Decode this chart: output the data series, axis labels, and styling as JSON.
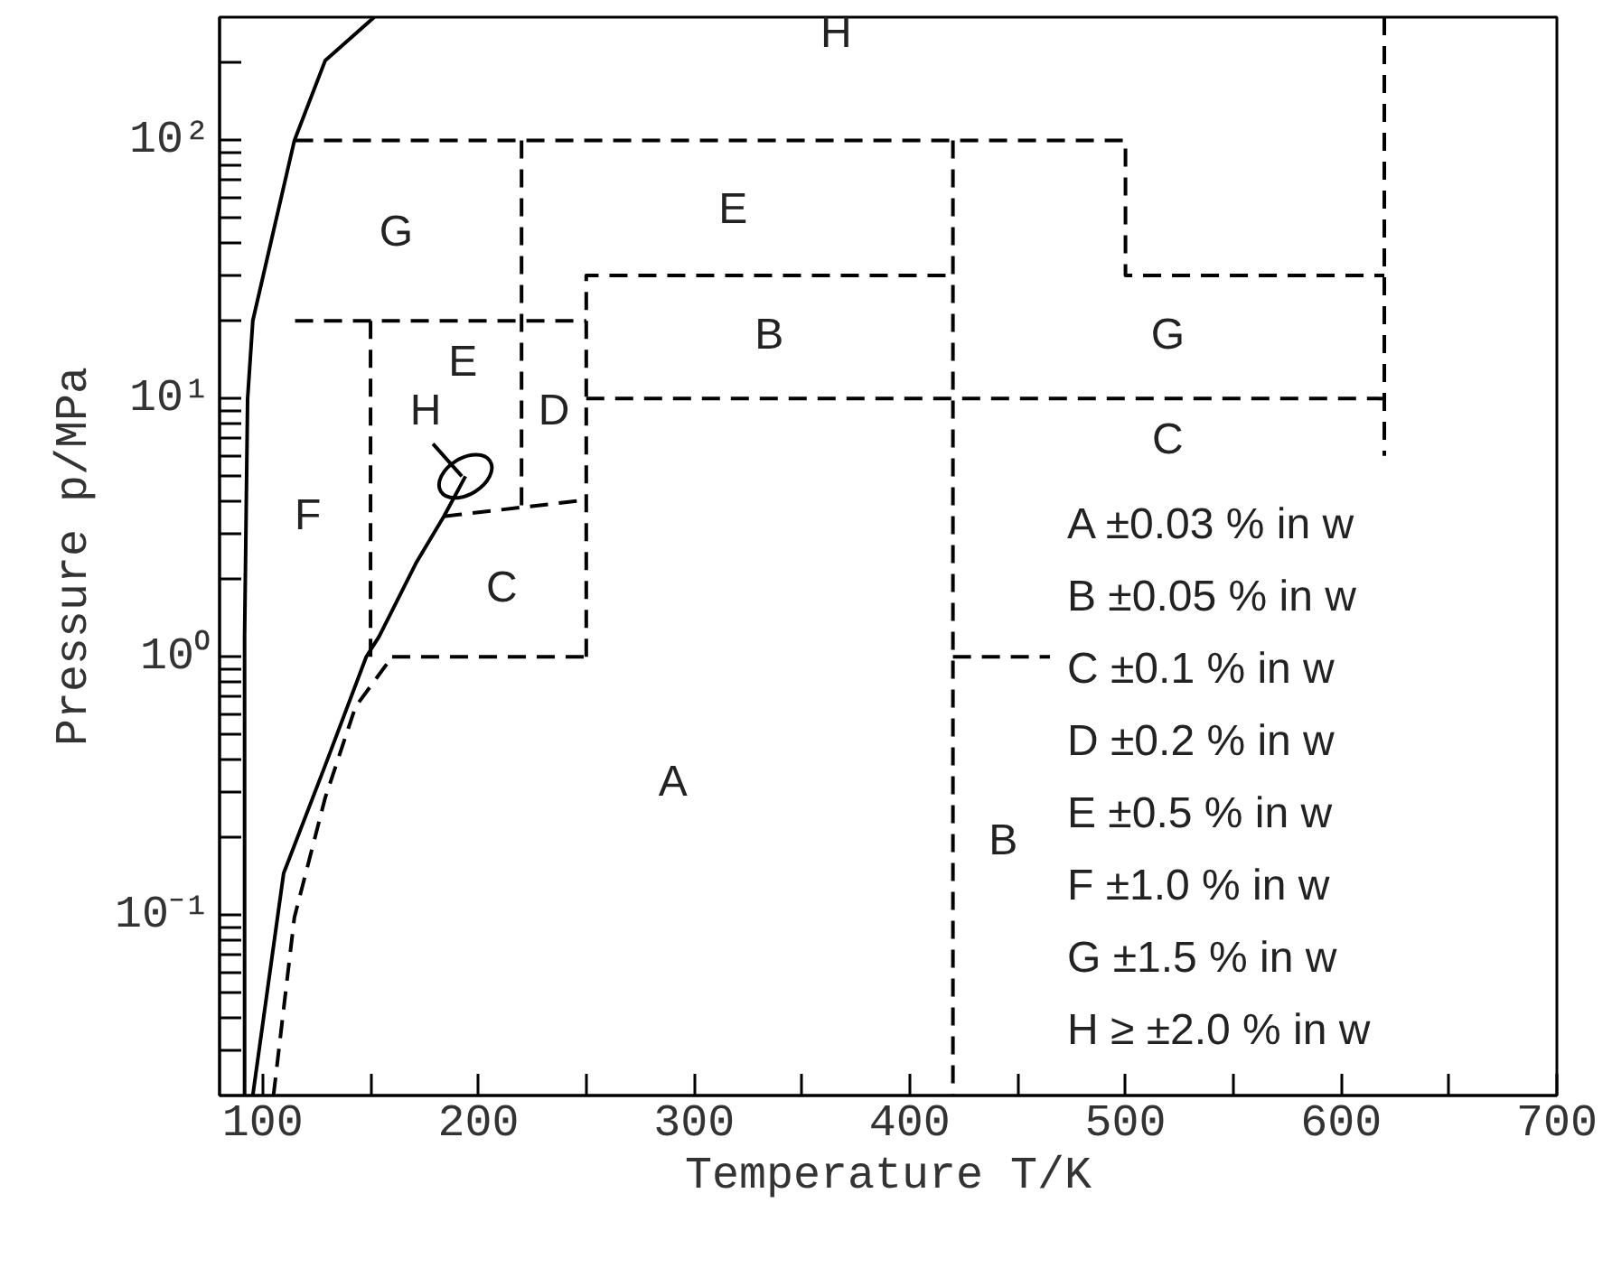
{
  "chart_data": {
    "type": "line",
    "xlabel": "Temperature T/K",
    "ylabel": "Pressure p/MPa",
    "log": "y",
    "grid": false,
    "marker": "none",
    "xlim": [
      80,
      700
    ],
    "xticks": [
      100,
      {
        "value": 150,
        "label": null
      },
      200,
      {
        "value": 250,
        "label": null
      },
      300,
      {
        "value": 350,
        "label": null
      },
      400,
      {
        "value": 450,
        "label": null
      },
      500,
      {
        "value": 550,
        "label": null
      },
      600,
      {
        "value": 650,
        "label": null
      },
      700
    ],
    "ylim": [
      0.02,
      300
    ],
    "yticks": [
      {
        "value": 0.03,
        "label": null
      },
      {
        "value": 0.04,
        "label": null
      },
      {
        "value": 0.05,
        "label": null
      },
      {
        "value": 0.06,
        "label": null
      },
      {
        "value": 0.07,
        "label": null
      },
      {
        "value": 0.08,
        "label": null
      },
      {
        "value": 0.09,
        "label": null
      },
      {
        "value": 0.1,
        "label": "10⁻¹"
      },
      {
        "value": 0.2,
        "label": null
      },
      {
        "value": 0.3,
        "label": null
      },
      {
        "value": 0.4,
        "label": null
      },
      {
        "value": 0.5,
        "label": null
      },
      {
        "value": 0.6,
        "label": null
      },
      {
        "value": 0.7,
        "label": null
      },
      {
        "value": 0.8,
        "label": null
      },
      {
        "value": 0.9,
        "label": null
      },
      {
        "value": 1,
        "label": "10⁰"
      },
      {
        "value": 2,
        "label": null
      },
      {
        "value": 3,
        "label": null
      },
      {
        "value": 4,
        "label": null
      },
      {
        "value": 5,
        "label": null
      },
      {
        "value": 6,
        "label": null
      },
      {
        "value": 7,
        "label": null
      },
      {
        "value": 8,
        "label": null
      },
      {
        "value": 9,
        "label": null
      },
      {
        "value": 10,
        "label": "10¹"
      },
      {
        "value": 20,
        "label": null
      },
      {
        "value": 30,
        "label": null
      },
      {
        "value": 40,
        "label": null
      },
      {
        "value": 50,
        "label": null
      },
      {
        "value": 60,
        "label": null
      },
      {
        "value": 70,
        "label": null
      },
      {
        "value": 80,
        "label": null
      },
      {
        "value": 90,
        "label": null
      },
      {
        "value": 100,
        "label": "10²"
      },
      {
        "value": 200,
        "label": null
      }
    ],
    "series": [
      {
        "color": "#000000",
        "line_style": "dashed",
        "x": [
          115,
          500,
          500,
          620
        ],
        "values": [
          100,
          100,
          30,
          30
        ]
      },
      {
        "color": "#000000",
        "line_style": "dashed",
        "x": [
          115,
          250
        ],
        "values": [
          20,
          20
        ]
      },
      {
        "color": "#000000",
        "line_style": "dashed",
        "x": [
          250,
          250,
          420
        ],
        "values": [
          1,
          30,
          30
        ]
      },
      {
        "color": "#000000",
        "line_style": "dashed",
        "x": [
          220,
          220
        ],
        "values": [
          100,
          3.8
        ]
      },
      {
        "color": "#000000",
        "line_style": "dashed",
        "x": [
          150,
          150
        ],
        "values": [
          20,
          1
        ]
      },
      {
        "color": "#000000",
        "line_style": "dashed",
        "x": [
          250,
          620
        ],
        "values": [
          10,
          10
        ]
      },
      {
        "color": "#000000",
        "line_style": "dashed",
        "x": [
          420,
          420
        ],
        "values": [
          100,
          0.02
        ]
      },
      {
        "color": "#000000",
        "line_style": "dashed",
        "x": [
          420,
          465
        ],
        "values": [
          1,
          1
        ]
      },
      {
        "color": "#000000",
        "line_style": "dashed",
        "x": [
          620,
          620
        ],
        "values": [
          300,
          6
        ]
      },
      {
        "color": "#000000",
        "line_style": "dashed",
        "x": [
          160,
          250
        ],
        "values": [
          1,
          1
        ]
      },
      {
        "color": "#000000",
        "line_style": "dashed",
        "x": [
          184,
          250
        ],
        "values": [
          3.5,
          4.05
        ]
      },
      {
        "color": "#000000",
        "line_style": "dashed",
        "x": [
          105,
          114.7,
          129,
          143,
          160
        ],
        "values": [
          0.02,
          0.098,
          0.285,
          0.64,
          1
        ]
      },
      {
        "color": "#000000",
        "line_style": "solid",
        "x": [
          91.6,
          91.6,
          93,
          95.4,
          103.7,
          114.7,
          129,
          151.7
        ],
        "values": [
          0.02,
          1.2,
          10,
          20,
          40,
          100,
          204,
          300
        ]
      },
      {
        "color": "#000000",
        "line_style": "solid",
        "x": [
          95.4,
          109.7,
          129,
          148,
          154,
          171,
          184,
          194
        ],
        "values": [
          0.02,
          0.145,
          0.38,
          1,
          1.2,
          2.3,
          3.5,
          5
        ]
      }
    ],
    "annotations": [
      {
        "text": "H",
        "x": 194,
        "y": 5
      },
      "H",
      "G",
      "E",
      "E",
      "B",
      "G",
      "D",
      "C",
      "F",
      "C",
      "A",
      "B",
      "A  ±0.03 %  in w",
      "B  ±0.05 %  in w",
      "C  ±0.1 %  in w",
      "D  ±0.2 %  in w",
      "E  ±0.5 %  in w",
      "F  ±1.0 %  in w",
      "G  ±1.5 %  in w",
      "H  ≥ ±2.0 %  in w"
    ]
  }
}
